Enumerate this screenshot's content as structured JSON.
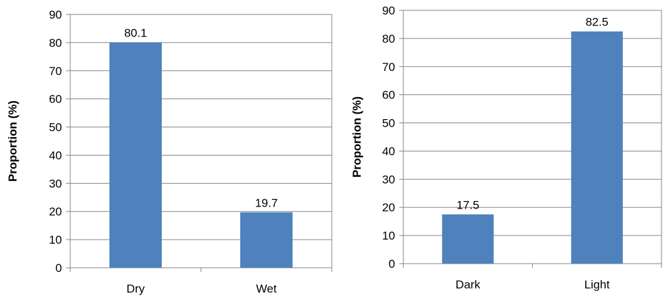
{
  "chart_data": [
    {
      "type": "bar",
      "categories": [
        "Dry",
        "Wet"
      ],
      "values": [
        80.1,
        19.7
      ],
      "data_labels": [
        "80.1",
        "19.7"
      ],
      "xlabel": "",
      "ylabel": "Proportion (%)",
      "ylim": [
        0,
        90
      ],
      "yticks": [
        0,
        10,
        20,
        30,
        40,
        50,
        60,
        70,
        80,
        90
      ],
      "grid": true,
      "bar_color": "#4F81BD"
    },
    {
      "type": "bar",
      "categories": [
        "Dark",
        "Light"
      ],
      "values": [
        17.5,
        82.5
      ],
      "data_labels": [
        "17.5",
        "82.5"
      ],
      "xlabel": "",
      "ylabel": "Proportion (%)",
      "ylim": [
        0,
        90
      ],
      "yticks": [
        0,
        10,
        20,
        30,
        40,
        50,
        60,
        70,
        80,
        90
      ],
      "grid": true,
      "bar_color": "#4F81BD"
    }
  ]
}
